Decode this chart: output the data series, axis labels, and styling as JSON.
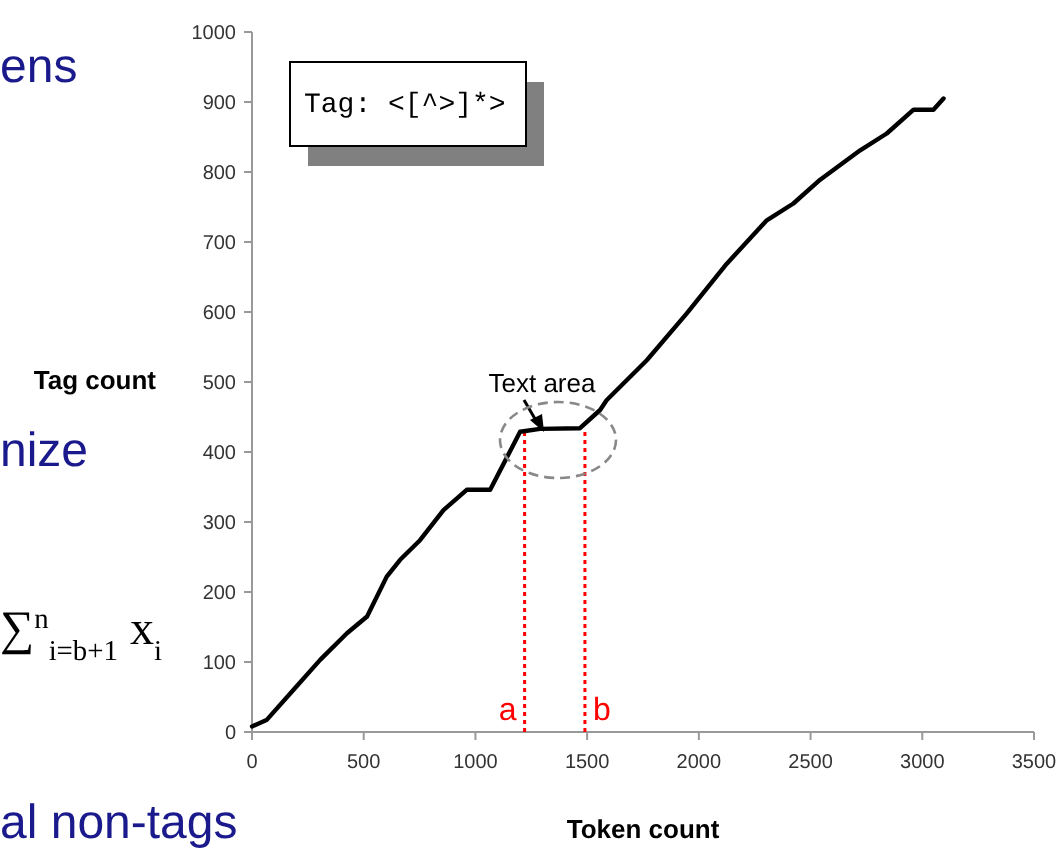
{
  "chart_data": {
    "type": "line",
    "xlabel": "Token count",
    "ylabel": "Tag count",
    "xlim": [
      0,
      3500
    ],
    "xticks": [
      0,
      500,
      1000,
      1500,
      2000,
      2500,
      3000,
      3500
    ],
    "ylim": [
      0,
      1000
    ],
    "yticks": [
      0,
      100,
      200,
      300,
      400,
      500,
      600,
      700,
      800,
      900,
      1000
    ],
    "grid": false,
    "marker": "none",
    "line_style": "solid",
    "x": [
      0,
      65,
      185,
      305,
      425,
      515,
      603,
      663,
      752,
      857,
      961,
      1066,
      1200,
      1289,
      1468,
      1558,
      1587,
      1767,
      1946,
      2125,
      2304,
      2423,
      2543,
      2722,
      2841,
      2961,
      3050,
      3095
    ],
    "series": [
      {
        "color": "#000000",
        "values": [
          8,
          17,
          60,
          103,
          141,
          165,
          222,
          246,
          274,
          317,
          346,
          346,
          429,
          433,
          434,
          460,
          474,
          531,
          598,
          669,
          731,
          755,
          789,
          831,
          855,
          889,
          889,
          905
        ]
      }
    ],
    "ref_lines": [
      {
        "axis": "x",
        "value": 1220,
        "label": "a",
        "color": "#ff0000",
        "line_style": "dotted"
      },
      {
        "axis": "x",
        "value": 1490,
        "label": "b",
        "color": "#ff0000",
        "line_style": "dotted"
      }
    ],
    "annotations": [
      "Text area",
      "Tag: <[^>]*>",
      "ens",
      "nize",
      "∑$^{n}$$_{i=b+1}$ x$_{i}$",
      "al non-tags"
    ]
  }
}
